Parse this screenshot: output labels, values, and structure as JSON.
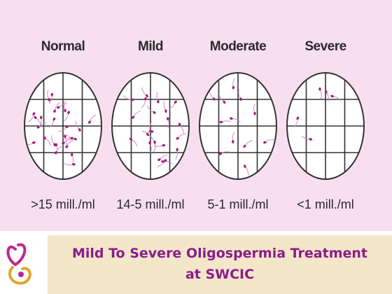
{
  "panels": [
    {
      "title": "Normal",
      "range": ">15 mill./ml"
    },
    {
      "title": "Mild",
      "range": "14-5 mill./ml"
    },
    {
      "title": "Moderate",
      "range": "5-1 mill./ml"
    },
    {
      "title": "Severe",
      "range": "<1 mill./ml"
    }
  ],
  "footer": {
    "line1": "Mild To Severe Oligospermia Treatment",
    "line2": "at SWCIC"
  }
}
